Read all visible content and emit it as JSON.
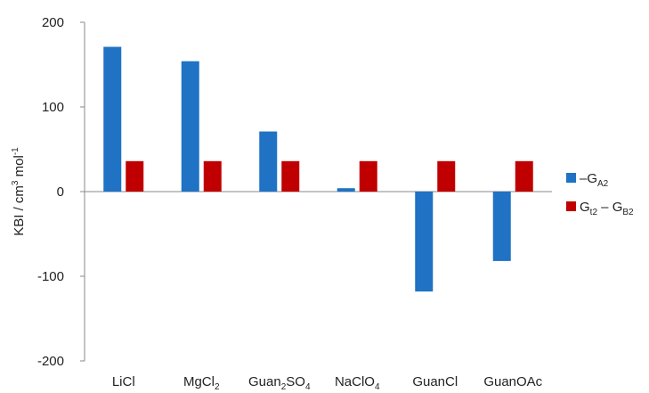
{
  "chart_data": {
    "type": "bar",
    "ylabel": {
      "main": "KBI / cm",
      "sup1": "3",
      "mid": " mol",
      "sup2": "-1"
    },
    "ylim": [
      -200,
      200
    ],
    "yticks": [
      "-200",
      "-100",
      "0",
      "100",
      "200"
    ],
    "grid": false,
    "legend_position": "right",
    "categories": [
      {
        "label": "LiCl",
        "parts": [
          {
            "t": "LiCl"
          }
        ]
      },
      {
        "label": "MgCl2",
        "parts": [
          {
            "t": "MgCl"
          },
          {
            "t": "2",
            "sub": true
          }
        ]
      },
      {
        "label": "Guan2SO4",
        "parts": [
          {
            "t": "Guan"
          },
          {
            "t": "2",
            "sub": true
          },
          {
            "t": "SO"
          },
          {
            "t": "4",
            "sub": true
          }
        ]
      },
      {
        "label": "NaClO4",
        "parts": [
          {
            "t": "NaClO"
          },
          {
            "t": "4",
            "sub": true
          }
        ]
      },
      {
        "label": "GuanCl",
        "parts": [
          {
            "t": "GuanCl"
          }
        ]
      },
      {
        "label": "GuanOAc",
        "parts": [
          {
            "t": "GuanOAc"
          }
        ]
      }
    ],
    "series": [
      {
        "name": "–GA2",
        "legend_parts": [
          {
            "t": "–G"
          },
          {
            "t": "A2",
            "sub": true
          }
        ],
        "color": "#1f72c4",
        "values": [
          171,
          154,
          71,
          4,
          -118,
          -82
        ]
      },
      {
        "name": "Gt2 – GB2",
        "legend_parts": [
          {
            "t": "G"
          },
          {
            "t": "t2",
            "sub": true
          },
          {
            "t": " – G"
          },
          {
            "t": "B2",
            "sub": true
          }
        ],
        "color": "#c00000",
        "values": [
          36,
          36,
          36,
          36,
          36,
          36
        ]
      }
    ]
  }
}
